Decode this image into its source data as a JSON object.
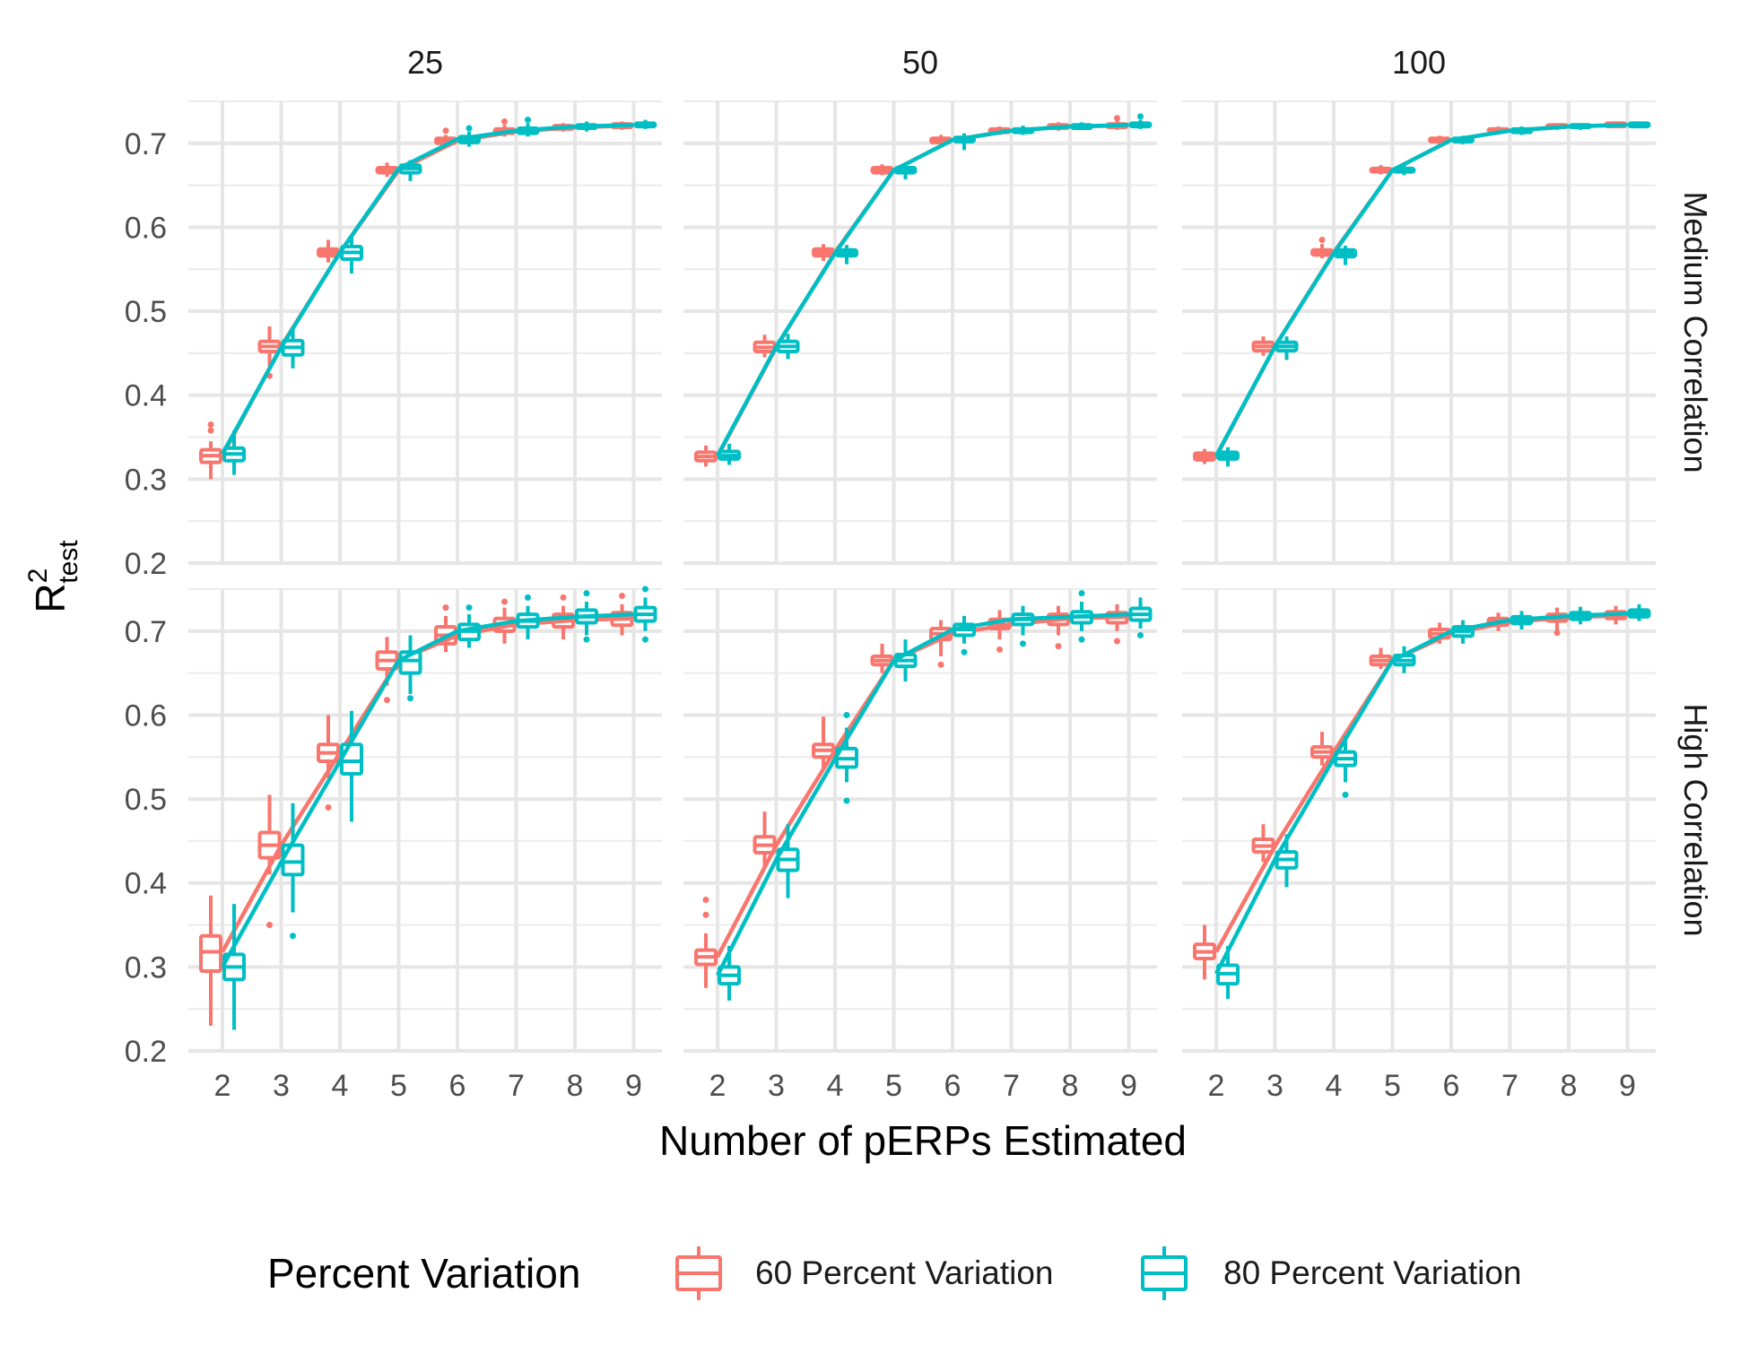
{
  "chart_data": {
    "type": "box",
    "xlabel": "Number of pERPs Estimated",
    "ylabel_main": "R",
    "ylabel_sup": "2",
    "ylabel_sub": "test",
    "x_categories": [
      2,
      3,
      4,
      5,
      6,
      7,
      8,
      9
    ],
    "ylim": [
      0.2,
      0.75
    ],
    "y_ticks": [
      0.2,
      0.3,
      0.4,
      0.5,
      0.6,
      0.7
    ],
    "column_facets": [
      "25",
      "50",
      "100"
    ],
    "row_facets": [
      "Medium Correlation",
      "High Correlation"
    ],
    "grid": true,
    "legend": {
      "title": "Percent Variation",
      "position": "bottom",
      "entries": [
        {
          "name": "60 Percent Variation",
          "color": "#F8766D"
        },
        {
          "name": "80 Percent Variation",
          "color": "#00BFC4"
        }
      ]
    },
    "series_colors": {
      "60": "#F8766D",
      "80": "#00BFC4"
    },
    "panels": [
      {
        "column": "25",
        "row": "Medium Correlation",
        "s60": [
          [
            2,
            0.3,
            0.32,
            0.328,
            0.335,
            0.345,
            [
              0.358,
              0.365
            ]
          ],
          [
            3,
            0.435,
            0.452,
            0.458,
            0.464,
            0.482,
            [
              0.423
            ]
          ],
          [
            4,
            0.558,
            0.566,
            0.57,
            0.574,
            0.585,
            []
          ],
          [
            5,
            0.66,
            0.665,
            0.668,
            0.671,
            0.677,
            []
          ],
          [
            6,
            0.695,
            0.7,
            0.703,
            0.706,
            0.71,
            [
              0.715
            ]
          ],
          [
            7,
            0.708,
            0.712,
            0.714,
            0.717,
            0.722,
            [
              0.726
            ]
          ],
          [
            8,
            0.714,
            0.717,
            0.719,
            0.721,
            0.724,
            []
          ],
          [
            9,
            0.716,
            0.719,
            0.721,
            0.723,
            0.726,
            []
          ]
        ],
        "s80": [
          [
            2,
            0.305,
            0.322,
            0.33,
            0.337,
            0.358,
            []
          ],
          [
            3,
            0.432,
            0.448,
            0.457,
            0.465,
            0.48,
            []
          ],
          [
            4,
            0.545,
            0.562,
            0.57,
            0.577,
            0.59,
            []
          ],
          [
            5,
            0.655,
            0.665,
            0.67,
            0.674,
            0.68,
            []
          ],
          [
            6,
            0.696,
            0.701,
            0.705,
            0.708,
            0.714,
            [
              0.718
            ]
          ],
          [
            7,
            0.708,
            0.712,
            0.715,
            0.718,
            0.724,
            [
              0.728
            ]
          ],
          [
            8,
            0.714,
            0.718,
            0.72,
            0.722,
            0.726,
            []
          ],
          [
            9,
            0.717,
            0.72,
            0.722,
            0.724,
            0.728,
            []
          ]
        ]
      },
      {
        "column": "50",
        "row": "Medium Correlation",
        "s60": [
          [
            2,
            0.315,
            0.322,
            0.327,
            0.332,
            0.34,
            []
          ],
          [
            3,
            0.445,
            0.452,
            0.457,
            0.463,
            0.472,
            []
          ],
          [
            4,
            0.56,
            0.566,
            0.57,
            0.574,
            0.58,
            []
          ],
          [
            5,
            0.662,
            0.665,
            0.668,
            0.671,
            0.675,
            []
          ],
          [
            6,
            0.697,
            0.701,
            0.704,
            0.706,
            0.71,
            []
          ],
          [
            7,
            0.71,
            0.713,
            0.715,
            0.717,
            0.72,
            []
          ],
          [
            8,
            0.715,
            0.718,
            0.72,
            0.722,
            0.725,
            []
          ],
          [
            9,
            0.716,
            0.719,
            0.721,
            0.723,
            0.727,
            [
              0.73
            ]
          ]
        ],
        "s80": [
          [
            2,
            0.317,
            0.324,
            0.328,
            0.333,
            0.342,
            []
          ],
          [
            3,
            0.443,
            0.452,
            0.458,
            0.464,
            0.473,
            []
          ],
          [
            4,
            0.556,
            0.566,
            0.569,
            0.573,
            0.579,
            []
          ],
          [
            5,
            0.657,
            0.665,
            0.668,
            0.671,
            0.676,
            []
          ],
          [
            6,
            0.692,
            0.702,
            0.704,
            0.707,
            0.712,
            []
          ],
          [
            7,
            0.71,
            0.713,
            0.715,
            0.717,
            0.721,
            []
          ],
          [
            8,
            0.716,
            0.718,
            0.72,
            0.722,
            0.725,
            []
          ],
          [
            9,
            0.717,
            0.72,
            0.722,
            0.724,
            0.728,
            [
              0.732
            ]
          ]
        ]
      },
      {
        "column": "100",
        "row": "Medium Correlation",
        "s60": [
          [
            2,
            0.318,
            0.323,
            0.327,
            0.331,
            0.336,
            []
          ],
          [
            3,
            0.447,
            0.453,
            0.458,
            0.463,
            0.47,
            []
          ],
          [
            4,
            0.563,
            0.567,
            0.57,
            0.573,
            0.58,
            [
              0.585
            ]
          ],
          [
            5,
            0.663,
            0.666,
            0.668,
            0.67,
            0.674,
            []
          ],
          [
            6,
            0.699,
            0.702,
            0.704,
            0.706,
            0.709,
            []
          ],
          [
            7,
            0.711,
            0.714,
            0.715,
            0.717,
            0.72,
            []
          ],
          [
            8,
            0.716,
            0.719,
            0.72,
            0.722,
            0.724,
            []
          ],
          [
            9,
            0.718,
            0.72,
            0.722,
            0.724,
            0.726,
            []
          ]
        ],
        "s80": [
          [
            2,
            0.315,
            0.324,
            0.328,
            0.332,
            0.338,
            []
          ],
          [
            3,
            0.442,
            0.453,
            0.458,
            0.463,
            0.47,
            []
          ],
          [
            4,
            0.555,
            0.565,
            0.569,
            0.573,
            0.578,
            []
          ],
          [
            5,
            0.662,
            0.666,
            0.668,
            0.67,
            0.674,
            []
          ],
          [
            6,
            0.699,
            0.702,
            0.704,
            0.706,
            0.709,
            []
          ],
          [
            7,
            0.71,
            0.713,
            0.715,
            0.717,
            0.72,
            []
          ],
          [
            8,
            0.716,
            0.719,
            0.72,
            0.722,
            0.724,
            []
          ],
          [
            9,
            0.718,
            0.72,
            0.722,
            0.724,
            0.726,
            []
          ]
        ]
      },
      {
        "column": "25",
        "row": "High Correlation",
        "s60": [
          [
            2,
            0.23,
            0.295,
            0.318,
            0.337,
            0.385,
            []
          ],
          [
            3,
            0.41,
            0.43,
            0.445,
            0.46,
            0.505,
            [
              0.35
            ]
          ],
          [
            4,
            0.525,
            0.545,
            0.555,
            0.565,
            0.6,
            [
              0.49
            ]
          ],
          [
            5,
            0.635,
            0.655,
            0.665,
            0.675,
            0.693,
            [
              0.618
            ]
          ],
          [
            6,
            0.675,
            0.685,
            0.695,
            0.705,
            0.718,
            [
              0.728
            ]
          ],
          [
            7,
            0.685,
            0.7,
            0.708,
            0.715,
            0.728,
            [
              0.735
            ]
          ],
          [
            8,
            0.69,
            0.705,
            0.713,
            0.72,
            0.73,
            [
              0.74
            ]
          ],
          [
            9,
            0.695,
            0.707,
            0.715,
            0.722,
            0.732,
            [
              0.742
            ]
          ]
        ],
        "s80": [
          [
            2,
            0.225,
            0.285,
            0.3,
            0.315,
            0.375,
            []
          ],
          [
            3,
            0.365,
            0.41,
            0.425,
            0.445,
            0.495,
            [
              0.337
            ]
          ],
          [
            4,
            0.473,
            0.53,
            0.545,
            0.565,
            0.605,
            []
          ],
          [
            5,
            0.625,
            0.65,
            0.665,
            0.675,
            0.695,
            [
              0.62
            ]
          ],
          [
            6,
            0.68,
            0.69,
            0.7,
            0.708,
            0.72,
            [
              0.728
            ]
          ],
          [
            7,
            0.69,
            0.705,
            0.712,
            0.72,
            0.73,
            [
              0.74
            ]
          ],
          [
            8,
            0.695,
            0.71,
            0.717,
            0.725,
            0.735,
            [
              0.745,
              0.69
            ]
          ],
          [
            9,
            0.7,
            0.712,
            0.72,
            0.728,
            0.74,
            [
              0.75,
              0.69
            ]
          ]
        ]
      },
      {
        "column": "50",
        "row": "High Correlation",
        "s60": [
          [
            2,
            0.275,
            0.303,
            0.312,
            0.32,
            0.34,
            [
              0.38,
              0.362
            ]
          ],
          [
            3,
            0.42,
            0.436,
            0.445,
            0.455,
            0.485,
            []
          ],
          [
            4,
            0.535,
            0.55,
            0.558,
            0.565,
            0.598,
            []
          ],
          [
            5,
            0.65,
            0.66,
            0.665,
            0.67,
            0.685,
            []
          ],
          [
            6,
            0.67,
            0.69,
            0.697,
            0.703,
            0.713,
            [
              0.66
            ]
          ],
          [
            7,
            0.69,
            0.703,
            0.708,
            0.714,
            0.725,
            [
              0.678
            ]
          ],
          [
            8,
            0.695,
            0.708,
            0.715,
            0.72,
            0.73,
            [
              0.682
            ]
          ],
          [
            9,
            0.7,
            0.71,
            0.717,
            0.722,
            0.732,
            [
              0.688
            ]
          ]
        ],
        "s80": [
          [
            2,
            0.26,
            0.28,
            0.29,
            0.3,
            0.325,
            []
          ],
          [
            3,
            0.382,
            0.415,
            0.428,
            0.44,
            0.47,
            []
          ],
          [
            4,
            0.52,
            0.538,
            0.548,
            0.56,
            0.585,
            [
              0.6,
              0.498
            ]
          ],
          [
            5,
            0.64,
            0.658,
            0.665,
            0.672,
            0.69,
            []
          ],
          [
            6,
            0.685,
            0.695,
            0.702,
            0.708,
            0.718,
            [
              0.675
            ]
          ],
          [
            7,
            0.695,
            0.708,
            0.714,
            0.72,
            0.73,
            [
              0.685
            ]
          ],
          [
            8,
            0.7,
            0.71,
            0.717,
            0.723,
            0.735,
            [
              0.745,
              0.69
            ]
          ],
          [
            9,
            0.703,
            0.713,
            0.72,
            0.727,
            0.74,
            [
              0.695
            ]
          ]
        ]
      },
      {
        "column": "100",
        "row": "High Correlation",
        "s60": [
          [
            2,
            0.285,
            0.31,
            0.318,
            0.327,
            0.35,
            []
          ],
          [
            3,
            0.425,
            0.437,
            0.444,
            0.452,
            0.47,
            []
          ],
          [
            4,
            0.54,
            0.55,
            0.556,
            0.562,
            0.58,
            []
          ],
          [
            5,
            0.655,
            0.66,
            0.665,
            0.67,
            0.68,
            []
          ],
          [
            6,
            0.685,
            0.692,
            0.697,
            0.702,
            0.71,
            []
          ],
          [
            7,
            0.7,
            0.707,
            0.711,
            0.715,
            0.722,
            []
          ],
          [
            8,
            0.7,
            0.712,
            0.716,
            0.72,
            0.728,
            [
              0.698
            ]
          ],
          [
            9,
            0.708,
            0.715,
            0.719,
            0.723,
            0.73,
            []
          ]
        ],
        "s80": [
          [
            2,
            0.262,
            0.28,
            0.292,
            0.302,
            0.325,
            []
          ],
          [
            3,
            0.395,
            0.418,
            0.428,
            0.437,
            0.458,
            []
          ],
          [
            4,
            0.52,
            0.54,
            0.548,
            0.556,
            0.575,
            [
              0.505
            ]
          ],
          [
            5,
            0.65,
            0.66,
            0.665,
            0.671,
            0.682,
            []
          ],
          [
            6,
            0.685,
            0.694,
            0.7,
            0.705,
            0.713,
            []
          ],
          [
            7,
            0.702,
            0.709,
            0.713,
            0.717,
            0.724,
            []
          ],
          [
            8,
            0.708,
            0.714,
            0.718,
            0.722,
            0.729,
            []
          ],
          [
            9,
            0.712,
            0.717,
            0.721,
            0.725,
            0.732,
            []
          ]
        ]
      }
    ]
  }
}
